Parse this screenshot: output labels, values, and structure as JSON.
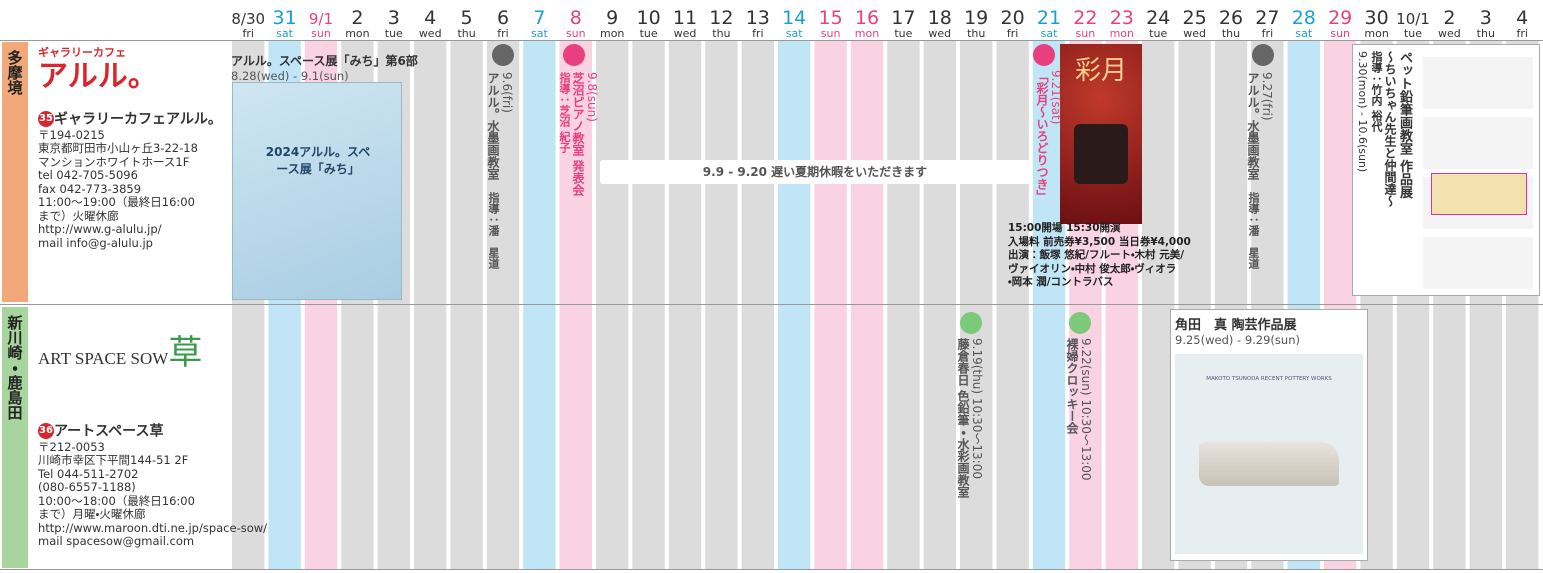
{
  "days": [
    {
      "date": "8/30",
      "weekday": "fri",
      "fill": "#dcdcdc",
      "ink": "#333333"
    },
    {
      "date": "31",
      "weekday": "sat",
      "fill": "#bfe5f6",
      "ink": "#1a9fd8"
    },
    {
      "date": "9/1",
      "weekday": "sun",
      "fill": "#fad3e2",
      "ink": "#e8407f"
    },
    {
      "date": "2",
      "weekday": "mon",
      "fill": "#dcdcdc",
      "ink": "#333333"
    },
    {
      "date": "3",
      "weekday": "tue",
      "fill": "#dcdcdc",
      "ink": "#333333"
    },
    {
      "date": "4",
      "weekday": "wed",
      "fill": "#dcdcdc",
      "ink": "#333333"
    },
    {
      "date": "5",
      "weekday": "thu",
      "fill": "#dcdcdc",
      "ink": "#333333"
    },
    {
      "date": "6",
      "weekday": "fri",
      "fill": "#dcdcdc",
      "ink": "#333333"
    },
    {
      "date": "7",
      "weekday": "sat",
      "fill": "#bfe5f6",
      "ink": "#1a9fd8"
    },
    {
      "date": "8",
      "weekday": "sun",
      "fill": "#fad3e2",
      "ink": "#e8407f"
    },
    {
      "date": "9",
      "weekday": "mon",
      "fill": "#dcdcdc",
      "ink": "#333333"
    },
    {
      "date": "10",
      "weekday": "tue",
      "fill": "#dcdcdc",
      "ink": "#333333"
    },
    {
      "date": "11",
      "weekday": "wed",
      "fill": "#dcdcdc",
      "ink": "#333333"
    },
    {
      "date": "12",
      "weekday": "thu",
      "fill": "#dcdcdc",
      "ink": "#333333"
    },
    {
      "date": "13",
      "weekday": "fri",
      "fill": "#dcdcdc",
      "ink": "#333333"
    },
    {
      "date": "14",
      "weekday": "sat",
      "fill": "#bfe5f6",
      "ink": "#1a9fd8"
    },
    {
      "date": "15",
      "weekday": "sun",
      "fill": "#fad3e2",
      "ink": "#e8407f"
    },
    {
      "date": "16",
      "weekday": "mon",
      "fill": "#fad3e2",
      "ink": "#e8407f"
    },
    {
      "date": "17",
      "weekday": "tue",
      "fill": "#dcdcdc",
      "ink": "#333333"
    },
    {
      "date": "18",
      "weekday": "wed",
      "fill": "#dcdcdc",
      "ink": "#333333"
    },
    {
      "date": "19",
      "weekday": "thu",
      "fill": "#dcdcdc",
      "ink": "#333333"
    },
    {
      "date": "20",
      "weekday": "fri",
      "fill": "#dcdcdc",
      "ink": "#333333"
    },
    {
      "date": "21",
      "weekday": "sat",
      "fill": "#bfe5f6",
      "ink": "#1a9fd8"
    },
    {
      "date": "22",
      "weekday": "sun",
      "fill": "#fad3e2",
      "ink": "#e8407f"
    },
    {
      "date": "23",
      "weekday": "mon",
      "fill": "#fad3e2",
      "ink": "#e8407f"
    },
    {
      "date": "24",
      "weekday": "tue",
      "fill": "#dcdcdc",
      "ink": "#333333"
    },
    {
      "date": "25",
      "weekday": "wed",
      "fill": "#dcdcdc",
      "ink": "#333333"
    },
    {
      "date": "26",
      "weekday": "thu",
      "fill": "#dcdcdc",
      "ink": "#333333"
    },
    {
      "date": "27",
      "weekday": "fri",
      "fill": "#dcdcdc",
      "ink": "#333333"
    },
    {
      "date": "28",
      "weekday": "sat",
      "fill": "#bfe5f6",
      "ink": "#1a9fd8"
    },
    {
      "date": "29",
      "weekday": "sun",
      "fill": "#fad3e2",
      "ink": "#e8407f"
    },
    {
      "date": "30",
      "weekday": "mon",
      "fill": "#dcdcdc",
      "ink": "#333333"
    },
    {
      "date": "10/1",
      "weekday": "tue",
      "fill": "#dcdcdc",
      "ink": "#333333"
    },
    {
      "date": "2",
      "weekday": "wed",
      "fill": "#dcdcdc",
      "ink": "#333333"
    },
    {
      "date": "3",
      "weekday": "thu",
      "fill": "#dcdcdc",
      "ink": "#333333"
    },
    {
      "date": "4",
      "weekday": "fri",
      "fill": "#dcdcdc",
      "ink": "#333333"
    }
  ],
  "galleries": [
    {
      "region": "多摩境",
      "region_color": "#f2a878",
      "logo_small": "ギャラリーカフェ",
      "logo": "アルル。",
      "number": "35",
      "name": "ギャラリーカフェアルル。",
      "info": [
        "〒194-0215",
        "東京都町田市小山ヶ丘3-22-18",
        "マンションホワイトホース1F",
        "tel 042-705-5096",
        "fax 042-773-3859",
        "11:00〜19:00（最終日16:00",
        "まで）火曜休廊",
        "http://www.g-alulu.jp/",
        "mail  info@g-alulu.jp"
      ],
      "events": [
        {
          "title": "アルル。スペース展「みち」第6部",
          "dates": "8.28(wed) - 9.1(sun)",
          "poster_text": "2024アルル。スペース展「みち」"
        },
        {
          "date": "9.6(fri)",
          "title": "アルル。水墨画教室",
          "teacher": "指導：潘　星道",
          "dot": "#666666"
        },
        {
          "date": "9.8(sun)",
          "title": "芝沼ピアノ教室 発表会",
          "teacher": "指導：芝沼 紀子",
          "dot": "#e8407f"
        },
        {
          "notice": "9.9 - 9.20 遅い夏期休暇をいただきます"
        },
        {
          "date": "9.21(sat)",
          "title": "「彩月〜いろどりつき」",
          "poster_text": "彩月",
          "dot": "#e8407f",
          "details": [
            "15:00開場 15:30開演",
            "入場料 前売券¥3,500 当日券¥4,000",
            "出演：飯塚 悠紀/フルート・木村 元美/",
            "ヴァイオリン・中村 俊太郎・ヴィオラ",
            "・岡本 潤/コントラバス"
          ]
        },
        {
          "date": "9.27(fri)",
          "title": "アルル。水墨画教室",
          "teacher": "指導：潘　星道",
          "dot": "#666666"
        },
        {
          "title": "ペット鉛筆画教室 作品展",
          "subtitle": "〜ちいちゃん先生と仲間達〜",
          "teacher": "指導：竹内 裕代",
          "dates": "9.30(mon) - 10.6(sun)"
        }
      ]
    },
    {
      "region": "新川崎・鹿島田",
      "region_color": "#a8d49e",
      "logo": "ART SPACE SOW",
      "logo_mark": "草",
      "number": "36",
      "name": "アートスペース草",
      "info": [
        "〒212-0053",
        "川崎市幸区下平間144-51 2F",
        "Tel 044-511-2702",
        "(080-6557-1188)",
        "10:00〜18:00（最終日16:00",
        "まで）月曜・火曜休廊",
        "http://www.maroon.dti.ne.jp/space-sow/",
        "mail spacesow@gmail.com"
      ],
      "events": [
        {
          "date": "9.19(thu) 10:30〜13:00",
          "title": "藤倉春日 色鉛筆・水彩画教室",
          "dot": "#7cc97a"
        },
        {
          "date": "9.22(sun) 10:30〜13:00",
          "title": "裸婦クロッキー会",
          "dot": "#7cc97a"
        },
        {
          "title": "角田　真 陶芸作品展",
          "dates": "9.25(wed) - 9.29(sun)",
          "poster_text": "MAKOTO TSUNODA RECENT POTTERY WORKS"
        }
      ]
    }
  ]
}
